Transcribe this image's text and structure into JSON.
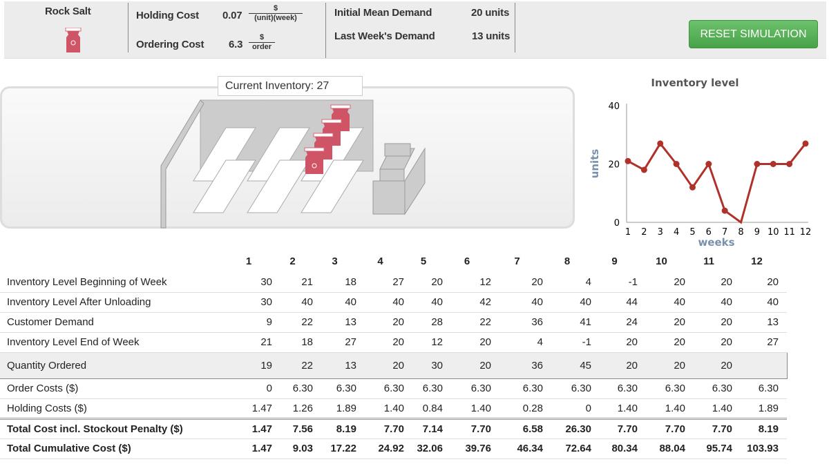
{
  "product": {
    "name": "Rock Salt",
    "icon": "salt-bag-icon"
  },
  "costs": {
    "holding_label": "Holding Cost",
    "holding_value": "0.07",
    "holding_unit_num": "$",
    "holding_unit_den": "(unit)(week)",
    "ordering_label": "Ordering Cost",
    "ordering_value": "6.3",
    "ordering_unit_num": "$",
    "ordering_unit_den": "order"
  },
  "demand": {
    "initial_label": "Initial Mean Demand",
    "initial_value": "20 units",
    "last_label": "Last Week's Demand",
    "last_value": "13 units"
  },
  "reset_label": "RESET SIMULATION",
  "accent": "#52a852",
  "current_inventory": "Current Inventory: 27",
  "chart_data": {
    "type": "line",
    "title": "Inventory level",
    "xlabel": "weeks",
    "ylabel": "units",
    "x": [
      1,
      2,
      3,
      4,
      5,
      6,
      7,
      8,
      9,
      10,
      11,
      12
    ],
    "values": [
      21,
      18,
      27,
      20,
      12,
      20,
      4,
      -1,
      20,
      20,
      20,
      27
    ],
    "ylim": [
      0,
      40
    ],
    "yticks": [
      "0",
      "20",
      "40"
    ],
    "xticks": [
      "1",
      "2",
      "3",
      "4",
      "5",
      "6",
      "7",
      "8",
      "9",
      "10",
      "11",
      "12"
    ],
    "color": "#b0302a",
    "grid": false
  },
  "table": {
    "weeks": [
      "1",
      "2",
      "3",
      "4",
      "5",
      "6",
      "7",
      "8",
      "9",
      "10",
      "11",
      "12"
    ],
    "rows": [
      {
        "label": "Inventory Level Beginning of Week",
        "values": [
          "30",
          "21",
          "18",
          "27",
          "20",
          "12",
          "20",
          "4",
          "-1",
          "20",
          "20",
          "20"
        ]
      },
      {
        "label": "Inventory Level After Unloading",
        "values": [
          "30",
          "40",
          "40",
          "40",
          "40",
          "42",
          "40",
          "40",
          "44",
          "40",
          "40",
          "40"
        ]
      },
      {
        "label": "Customer Demand",
        "values": [
          "9",
          "22",
          "13",
          "20",
          "28",
          "22",
          "36",
          "41",
          "24",
          "20",
          "20",
          "13"
        ]
      },
      {
        "label": "Inventory Level End of Week",
        "values": [
          "21",
          "18",
          "27",
          "20",
          "12",
          "20",
          "4",
          "-1",
          "20",
          "20",
          "20",
          "27"
        ]
      },
      {
        "label": "Quantity Ordered",
        "values": [
          "19",
          "22",
          "13",
          "20",
          "30",
          "20",
          "36",
          "45",
          "20",
          "20",
          "20",
          ""
        ]
      },
      {
        "label": "Order Costs ($)",
        "values": [
          "0",
          "6.30",
          "6.30",
          "6.30",
          "6.30",
          "6.30",
          "6.30",
          "6.30",
          "6.30",
          "6.30",
          "6.30",
          "6.30"
        ]
      },
      {
        "label": "Holding Costs ($)",
        "values": [
          "1.47",
          "1.26",
          "1.89",
          "1.40",
          "0.84",
          "1.40",
          "0.28",
          "0",
          "1.40",
          "1.40",
          "1.40",
          "1.89"
        ]
      },
      {
        "label": "Total Cost incl. Stockout Penalty ($)",
        "values": [
          "1.47",
          "7.56",
          "8.19",
          "7.70",
          "7.14",
          "7.70",
          "6.58",
          "26.30",
          "7.70",
          "7.70",
          "7.70",
          "8.19"
        ]
      },
      {
        "label": "Total Cumulative Cost ($)",
        "values": [
          "1.47",
          "9.03",
          "17.22",
          "24.92",
          "32.06",
          "39.76",
          "46.34",
          "72.64",
          "80.34",
          "88.04",
          "95.74",
          "103.93"
        ]
      }
    ]
  }
}
